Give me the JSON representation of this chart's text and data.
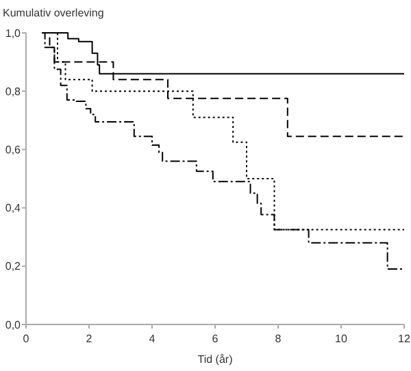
{
  "chart_data": {
    "type": "step",
    "ylabel": "Kumulativ overleving",
    "xlabel": "Tid (år)",
    "xlim": [
      0,
      12
    ],
    "xticks": [
      0,
      2,
      4,
      6,
      8,
      10,
      12
    ],
    "ylim": [
      0,
      1
    ],
    "yticks": [
      {
        "value": 0,
        "label": "0,0"
      },
      {
        "value": 0.2,
        "label": "0,2"
      },
      {
        "value": 0.4,
        "label": "0,4"
      },
      {
        "value": 0.6,
        "label": "0,6"
      },
      {
        "value": 0.8,
        "label": "0,8"
      },
      {
        "value": 1,
        "label": "1,0"
      }
    ],
    "grid": false,
    "marker": "none",
    "series": [
      {
        "color": "#000000",
        "line_style": "solid",
        "x": [
          0.6,
          1.33,
          1.67,
          2.1,
          2.27,
          2.33,
          12
        ],
        "values": [
          1,
          0.98,
          0.97,
          0.93,
          0.89,
          0.86,
          0.86
        ]
      },
      {
        "color": "#000000",
        "line_style": "dashed",
        "x": [
          0.5,
          0.75,
          0.9,
          2.77,
          4.5,
          8.3,
          12
        ],
        "values": [
          1,
          0.95,
          0.9,
          0.84,
          0.775,
          0.645,
          0.645
        ]
      },
      {
        "color": "#000000",
        "line_style": "dotted",
        "x": [
          0.7,
          1.0,
          1.25,
          2.1,
          5.3,
          6.57,
          7.0,
          7.88,
          12
        ],
        "values": [
          1,
          0.9,
          0.84,
          0.8,
          0.71,
          0.625,
          0.5,
          0.325,
          0.325
        ]
      },
      {
        "color": "#000000",
        "line_style": "dashdot",
        "x": [
          0.5,
          0.6,
          0.9,
          1.1,
          1.3,
          1.6,
          1.9,
          2.05,
          2.2,
          3.43,
          4.0,
          4.22,
          4.33,
          5.41,
          5.93,
          7.12,
          7.34,
          7.46,
          7.88,
          8.97,
          11.47,
          12
        ],
        "values": [
          1,
          0.95,
          0.875,
          0.82,
          0.77,
          0.765,
          0.74,
          0.72,
          0.695,
          0.645,
          0.615,
          0.59,
          0.56,
          0.525,
          0.49,
          0.45,
          0.415,
          0.377,
          0.325,
          0.28,
          0.19,
          0.19
        ]
      }
    ]
  }
}
